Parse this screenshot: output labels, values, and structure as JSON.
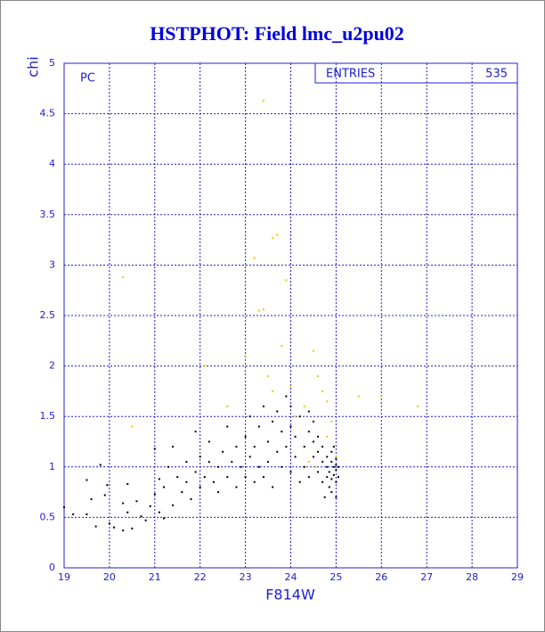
{
  "chart_data": {
    "type": "scatter",
    "title": "HSTPHOT: Field lmc_u2pu02",
    "x_label": "F814W",
    "y_label": "chi",
    "annotation": "PC",
    "stats": {
      "label": "ENTRIES",
      "value": 535
    },
    "xlim": [
      19,
      29
    ],
    "ylim": [
      0,
      5
    ],
    "xticks": [
      19,
      20,
      21,
      22,
      23,
      24,
      25,
      26,
      27,
      28,
      29
    ],
    "yticks": [
      0,
      0.5,
      1,
      1.5,
      2,
      2.5,
      3,
      3.5,
      4,
      4.5,
      5
    ],
    "grid": true,
    "series": [
      {
        "color": "#000000",
        "x": [
          19.0,
          19.2,
          19.5,
          19.5,
          19.6,
          19.7,
          19.8,
          19.9,
          19.95,
          20.0,
          20.1,
          20.3,
          20.3,
          20.4,
          20.4,
          20.5,
          20.6,
          20.7,
          20.8,
          20.9,
          21.0,
          21.0,
          21.1,
          21.1,
          21.2,
          21.2,
          21.3,
          21.4,
          21.4,
          21.5,
          21.6,
          21.7,
          21.7,
          21.8,
          21.9,
          21.9,
          22.0,
          22.0,
          22.1,
          22.2,
          22.2,
          22.3,
          22.4,
          22.4,
          22.5,
          22.6,
          22.6,
          22.7,
          22.8,
          22.8,
          22.9,
          23.0,
          23.0,
          23.1,
          23.1,
          23.2,
          23.2,
          23.3,
          23.3,
          23.4,
          23.4,
          23.5,
          23.5,
          23.6,
          23.6,
          23.7,
          23.7,
          23.8,
          23.8,
          23.9,
          23.9,
          24.0,
          24.0,
          24.0,
          24.1,
          24.1,
          24.2,
          24.2,
          24.3,
          24.3,
          24.4,
          24.4,
          24.4,
          24.5,
          24.5,
          24.5,
          24.6,
          24.6,
          24.6,
          24.7,
          24.7,
          24.7,
          24.8,
          24.8,
          24.8,
          24.85,
          24.85,
          24.9,
          24.9,
          24.9,
          24.95,
          24.95,
          25.0,
          25.0,
          25.0,
          25.0,
          25.05,
          25.05,
          24.9,
          24.75,
          25.0,
          24.95
        ],
        "values": [
          0.6,
          0.53,
          0.87,
          0.53,
          0.68,
          0.41,
          1.02,
          0.72,
          0.82,
          0.44,
          0.4,
          0.64,
          0.37,
          0.83,
          0.55,
          0.39,
          0.66,
          0.51,
          0.47,
          0.61,
          0.73,
          1.18,
          0.55,
          0.88,
          0.8,
          0.49,
          1.0,
          0.62,
          1.2,
          0.9,
          0.75,
          1.05,
          0.85,
          0.68,
          0.95,
          1.35,
          0.8,
          1.1,
          0.9,
          1.05,
          1.25,
          0.85,
          1.0,
          0.75,
          1.15,
          0.9,
          1.4,
          1.05,
          0.8,
          1.2,
          1.0,
          1.3,
          0.9,
          1.1,
          1.5,
          0.85,
          1.2,
          1.0,
          1.4,
          1.6,
          0.9,
          1.25,
          1.05,
          1.45,
          0.8,
          1.15,
          1.55,
          1.0,
          1.35,
          1.2,
          1.7,
          0.95,
          1.4,
          1.6,
          1.1,
          1.3,
          1.5,
          0.85,
          1.2,
          1.0,
          1.35,
          1.55,
          0.9,
          1.1,
          1.25,
          1.45,
          0.95,
          1.15,
          1.3,
          1.05,
          0.85,
          1.2,
          1.0,
          0.9,
          1.1,
          0.95,
          0.8,
          1.05,
          0.75,
          0.88,
          1.0,
          0.92,
          1.08,
          0.97,
          0.85,
          1.02,
          0.9,
          1.0,
          1.15,
          0.7,
          0.7,
          1.2
        ]
      },
      {
        "color": "#e8c800",
        "x": [
          20.3,
          20.5,
          22.1,
          22.6,
          23.0,
          23.2,
          23.3,
          23.4,
          23.4,
          23.5,
          23.6,
          23.7,
          23.8,
          23.9,
          24.0,
          24.1,
          24.3,
          24.5,
          24.6,
          24.7,
          24.8,
          24.9,
          25.0,
          24.55,
          25.5,
          26.0,
          26.8,
          24.8,
          24.4,
          23.6
        ],
        "values": [
          2.88,
          1.4,
          2.0,
          1.6,
          2.1,
          3.07,
          2.55,
          2.56,
          4.63,
          1.9,
          3.27,
          3.3,
          2.2,
          2.85,
          1.8,
          1.5,
          1.6,
          2.15,
          1.9,
          1.75,
          1.65,
          1.45,
          1.1,
          1.0,
          1.7,
          1.7,
          1.6,
          1.3,
          1.05,
          1.75
        ]
      }
    ]
  }
}
